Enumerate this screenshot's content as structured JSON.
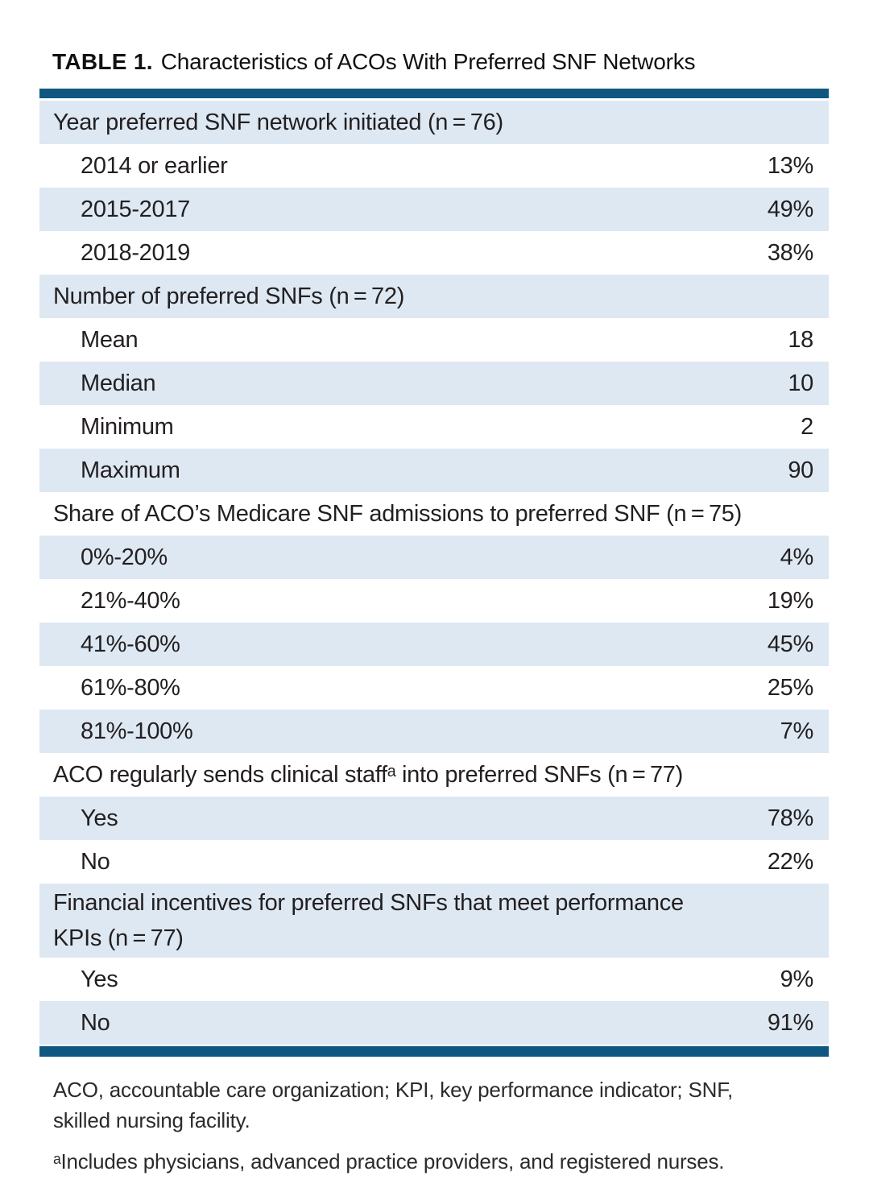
{
  "title": {
    "label": "TABLE 1.",
    "text": "Characteristics of ACOs With Preferred SNF Networks"
  },
  "colors": {
    "accent_navy": "#0f5781",
    "row_shade_blue": "#dde8f3",
    "text_ink": "#231f20"
  },
  "table": {
    "rows": [
      {
        "type": "section",
        "label": "Year preferred SNF network initiated (n = 76)",
        "value": "",
        "shaded": true
      },
      {
        "type": "item",
        "label": "2014 or earlier",
        "value": "13%",
        "shaded": false
      },
      {
        "type": "item",
        "label": "2015-2017",
        "value": "49%",
        "shaded": true
      },
      {
        "type": "item",
        "label": "2018-2019",
        "value": "38%",
        "shaded": false
      },
      {
        "type": "section",
        "label": "Number of preferred SNFs (n = 72)",
        "value": "",
        "shaded": true
      },
      {
        "type": "item",
        "label": "Mean",
        "value": "18",
        "shaded": false
      },
      {
        "type": "item",
        "label": "Median",
        "value": "10",
        "shaded": true
      },
      {
        "type": "item",
        "label": "Minimum",
        "value": "2",
        "shaded": false
      },
      {
        "type": "item",
        "label": "Maximum",
        "value": "90",
        "shaded": true
      },
      {
        "type": "section",
        "label": "Share of ACO’s Medicare SNF admissions to preferred SNF (n = 75)",
        "value": "",
        "shaded": false
      },
      {
        "type": "item",
        "label": "0%-20%",
        "value": "4%",
        "shaded": true
      },
      {
        "type": "item",
        "label": "21%-40%",
        "value": "19%",
        "shaded": false
      },
      {
        "type": "item",
        "label": "41%-60%",
        "value": "45%",
        "shaded": true
      },
      {
        "type": "item",
        "label": "61%-80%",
        "value": "25%",
        "shaded": false
      },
      {
        "type": "item",
        "label": "81%-100%",
        "value": "7%",
        "shaded": true
      },
      {
        "type": "section",
        "label": "ACO regularly sends clinical staffᵃ into preferred SNFs (n = 77)",
        "value": "",
        "shaded": false
      },
      {
        "type": "item",
        "label": "Yes",
        "value": "78%",
        "shaded": true
      },
      {
        "type": "item",
        "label": "No",
        "value": "22%",
        "shaded": false
      },
      {
        "type": "section",
        "label": "Financial incentives for preferred SNFs that meet performance\nKPIs (n = 77)",
        "value": "",
        "shaded": true
      },
      {
        "type": "item",
        "label": "Yes",
        "value": "9%",
        "shaded": false
      },
      {
        "type": "item",
        "label": "No",
        "value": "91%",
        "shaded": true
      }
    ]
  },
  "footnotes": [
    {
      "lines": [
        "ACO, accountable care organization; KPI, key performance indicator; SNF,",
        "skilled nursing facility."
      ]
    },
    {
      "lines": [
        "ᵃIncludes physicians, advanced practice providers, and registered nurses."
      ]
    }
  ]
}
